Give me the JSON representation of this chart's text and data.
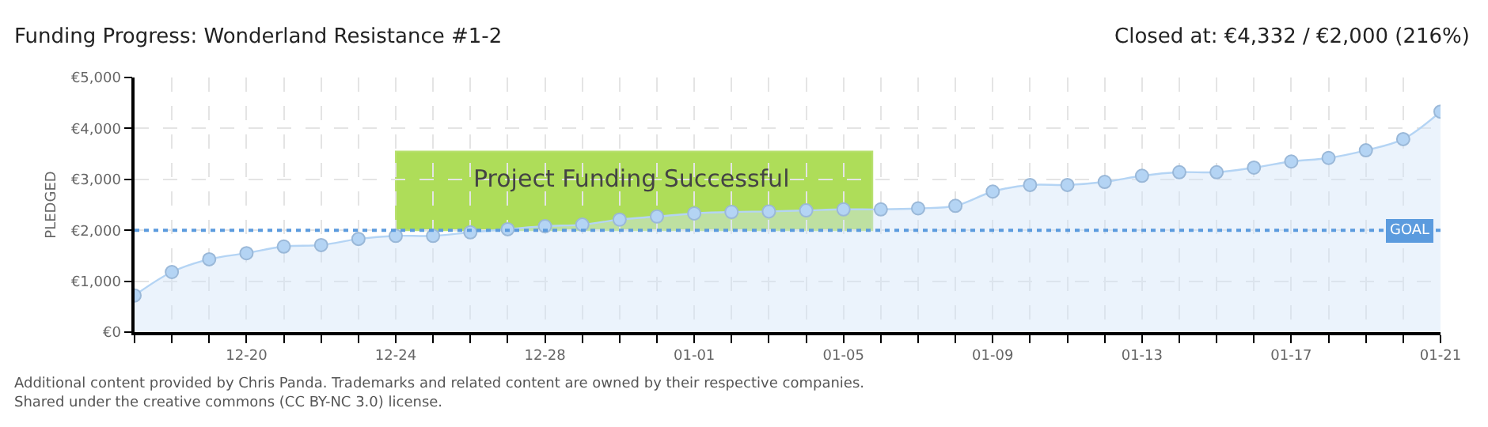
{
  "chart_data": {
    "type": "area",
    "title": "Funding Progress: Wonderland Resistance #1-2",
    "subtitle": "Closed at: €4,332 / €2,000 (216%)",
    "ylabel": "PLEDGED",
    "categories": [
      null,
      null,
      null,
      "12-20",
      null,
      null,
      null,
      "12-24",
      null,
      null,
      null,
      "12-28",
      null,
      null,
      null,
      "01-01",
      null,
      null,
      null,
      "01-05",
      null,
      null,
      null,
      "01-09",
      null,
      null,
      null,
      "01-13",
      null,
      null,
      null,
      "01-17",
      null,
      null,
      null,
      "01-21"
    ],
    "series": [
      {
        "color": "#b4d4f4",
        "values": [
          720,
          1180,
          1430,
          1550,
          1680,
          1710,
          1830,
          1890,
          1890,
          1960,
          2020,
          2080,
          2110,
          2210,
          2270,
          2330,
          2360,
          2370,
          2390,
          2410,
          2410,
          2430,
          2480,
          2760,
          2890,
          2890,
          2950,
          3070,
          3140,
          3140,
          3230,
          3350,
          3420,
          3570,
          3790,
          4330
        ]
      }
    ],
    "ylim": [
      0,
      5000
    ],
    "yticks": [
      {
        "value": 0,
        "label": "€0"
      },
      {
        "value": 1000,
        "label": "€1,000"
      },
      {
        "value": 2000,
        "label": "€2,000"
      },
      {
        "value": 3000,
        "label": "€3,000"
      },
      {
        "value": 4000,
        "label": "€4,000"
      },
      {
        "value": 5000,
        "label": "€5,000"
      }
    ],
    "ref_lines": [
      {
        "axis": "y",
        "value": 2000,
        "label": "GOAL",
        "color": "#5b9bde",
        "line_style": "dotted"
      }
    ],
    "annotations": [
      "Project Funding Successful",
      "Additional content provided by Chris Panda. Trademarks and related content are owned by their respective companies.",
      "Shared under the creative commons (CC BY-NC 3.0) license."
    ],
    "grid": true,
    "marker": "circle",
    "line_style": "solid"
  }
}
